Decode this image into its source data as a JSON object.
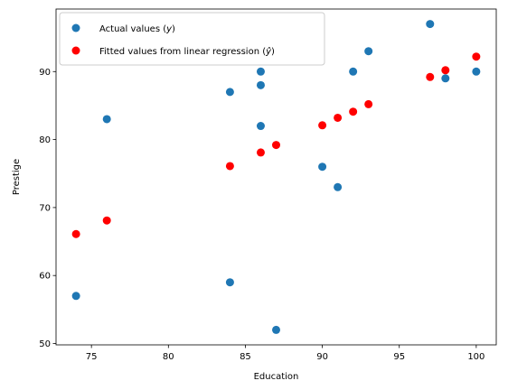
{
  "chart_data": {
    "type": "scatter",
    "title": "",
    "xlabel": "Education",
    "ylabel": "Prestige",
    "xlim": [
      72.7,
      101.3
    ],
    "ylim": [
      49.8,
      99.2
    ],
    "xticks": [
      75,
      80,
      85,
      90,
      95,
      100
    ],
    "yticks": [
      50,
      60,
      70,
      80,
      90
    ],
    "grid": false,
    "legend_position": "top-left",
    "series": [
      {
        "name": "Actual values",
        "name_math": "y",
        "color": "#1f77b4",
        "points": [
          [
            74,
            57
          ],
          [
            76,
            83
          ],
          [
            84,
            87
          ],
          [
            84,
            59
          ],
          [
            86,
            90
          ],
          [
            86,
            88
          ],
          [
            86,
            82
          ],
          [
            87,
            52
          ],
          [
            90,
            76
          ],
          [
            91,
            73
          ],
          [
            92,
            90
          ],
          [
            93,
            93
          ],
          [
            97,
            97
          ],
          [
            98,
            89
          ],
          [
            100,
            90
          ]
        ]
      },
      {
        "name": "Fitted values from linear regression",
        "name_math": "ŷ",
        "color": "#ff0000",
        "points": [
          [
            74,
            66.1
          ],
          [
            76,
            68.1
          ],
          [
            84,
            76.1
          ],
          [
            86,
            78.1
          ],
          [
            87,
            79.2
          ],
          [
            90,
            82.1
          ],
          [
            91,
            83.2
          ],
          [
            92,
            84.1
          ],
          [
            93,
            85.2
          ],
          [
            97,
            89.2
          ],
          [
            98,
            90.2
          ],
          [
            100,
            92.2
          ]
        ]
      }
    ]
  }
}
